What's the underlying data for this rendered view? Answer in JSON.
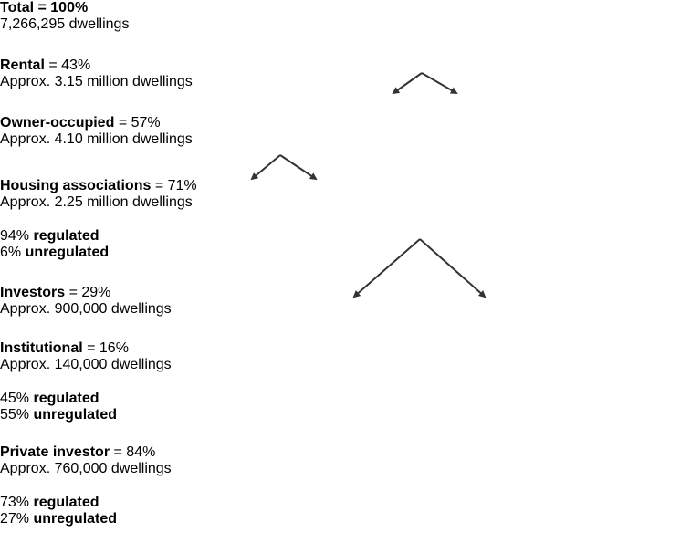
{
  "nodes": [
    {
      "name": "Total",
      "share": "= 100%",
      "detail": "7,266,295 dwellings"
    },
    {
      "name": "Rental",
      "share": "= 43%",
      "detail": "Approx. 3.15 million dwellings"
    },
    {
      "name": "Owner-occupied",
      "share": "= 57%",
      "detail": "Approx. 4.10 million dwellings"
    },
    {
      "name": "Housing associations",
      "share": "= 71%",
      "detail": "Approx. 2.25 million dwellings",
      "breakdown": [
        {
          "percent": "94%",
          "label": "regulated"
        },
        {
          "percent": "6%",
          "label": "unregulated"
        }
      ]
    },
    {
      "name": "Investors",
      "share": "= 29%",
      "detail": "Approx. 900,000 dwellings"
    },
    {
      "name": "Institutional",
      "share": "= 16%",
      "detail": "Approx. 140,000 dwellings",
      "breakdown": [
        {
          "percent": "45%",
          "label": "regulated"
        },
        {
          "percent": "55%",
          "label": "unregulated"
        }
      ]
    },
    {
      "name": "Private investor",
      "share": "= 84%",
      "detail": "Approx. 760,000 dwellings",
      "breakdown": [
        {
          "percent": "73%",
          "label": "regulated"
        },
        {
          "percent": "27%",
          "label": "unregulated"
        }
      ]
    }
  ]
}
